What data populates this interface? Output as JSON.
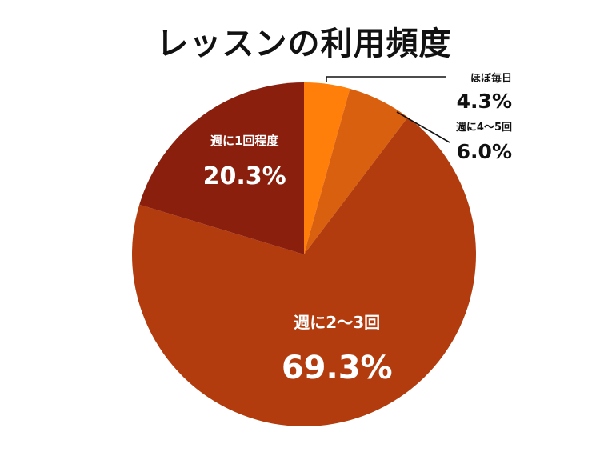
{
  "chart_data": {
    "type": "pie",
    "title": "レッスンの利用頻度",
    "slices": [
      {
        "label": "ほぼ毎日",
        "value": 4.3,
        "display": "4.3%",
        "color": "#FF7F0A",
        "label_position": "outside"
      },
      {
        "label": "週に4〜5回",
        "value": 6.0,
        "display": "6.0%",
        "color": "#D9600F",
        "label_position": "outside"
      },
      {
        "label": "週に2〜3回",
        "value": 69.3,
        "display": "69.3%",
        "color": "#B33C0E",
        "label_position": "inside"
      },
      {
        "label": "週に1回程度",
        "value": 20.3,
        "display": "20.3%",
        "color": "#8A1F0E",
        "label_position": "inside"
      }
    ]
  }
}
